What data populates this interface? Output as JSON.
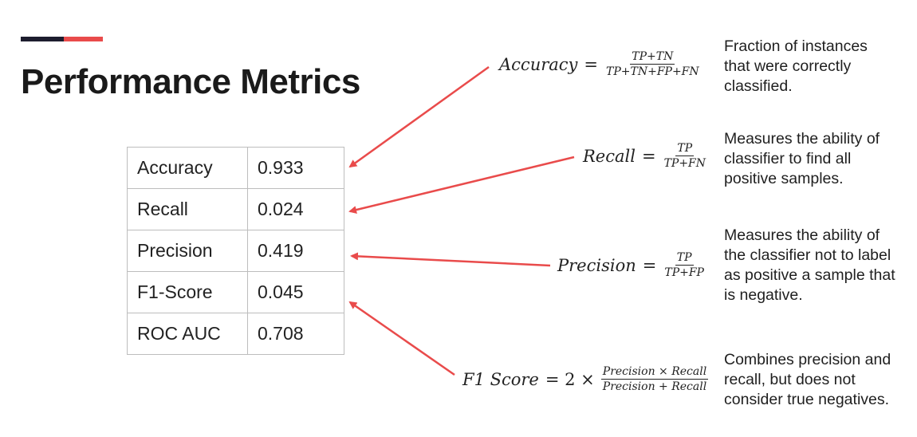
{
  "title": "Performance Metrics",
  "colors": {
    "accent_dark": "#1d1d2e",
    "accent_red": "#e94b4b",
    "arrow": "#e94b4b",
    "table_border": "#bdbdbd"
  },
  "metrics_table": [
    {
      "name": "Accuracy",
      "value": "0.933"
    },
    {
      "name": "Recall",
      "value": "0.024"
    },
    {
      "name": "Precision",
      "value": "0.419"
    },
    {
      "name": "F1-Score",
      "value": "0.045"
    },
    {
      "name": "ROC AUC",
      "value": "0.708"
    }
  ],
  "formulas": {
    "accuracy": {
      "lhs": "Accuracy",
      "op": "=",
      "numerator": "TP+TN",
      "denominator": "TP+TN+FP+FN"
    },
    "recall": {
      "lhs": "Recall",
      "op": "=",
      "numerator": "TP",
      "denominator": "TP+FN"
    },
    "precision": {
      "lhs": "Precision",
      "op": "=",
      "numerator": "TP",
      "denominator": "TP+FP"
    },
    "f1": {
      "lhs": "F1 Score",
      "op": "= 2 ×",
      "numerator": "Precision × Recall",
      "denominator": "Precision + Recall"
    }
  },
  "descriptions": {
    "accuracy": [
      "Fraction of instances",
      "that were correctly",
      "classified."
    ],
    "recall": [
      "Measures the ability of",
      "classifier to find all",
      "positive samples."
    ],
    "precision": [
      "Measures the ability of",
      "the classifier not to label",
      "as positive a sample that",
      "is negative."
    ],
    "f1": [
      "Combines precision and",
      "recall, but does not",
      "consider true negatives."
    ]
  }
}
